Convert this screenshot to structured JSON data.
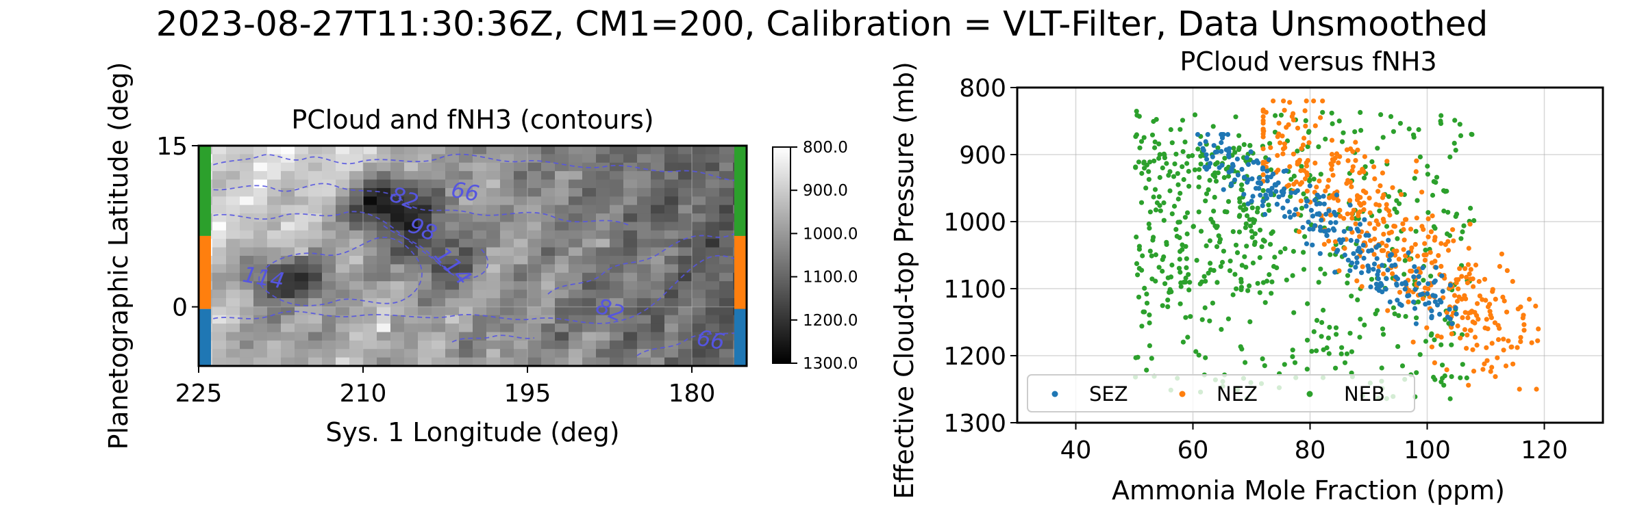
{
  "figure": {
    "suptitle": "2023-08-27T11:30:36Z, CM1=200, Calibration = VLT-Filter, Data Unsmoothed"
  },
  "chart_data": [
    {
      "type": "heatmap",
      "title": "PCloud and fNH3 (contours)",
      "xlabel": "Sys. 1 Longitude (deg)",
      "ylabel": "Planetographic Latitude (deg)",
      "xlim": [
        225,
        175
      ],
      "ylim": [
        -5.5,
        15
      ],
      "xticks": [
        225,
        210,
        195,
        180
      ],
      "yticks": [
        0,
        15
      ],
      "colormap": "gray_r",
      "colorbar": {
        "min": 800.0,
        "max": 1300.0,
        "ticks": [
          "800.0",
          "900.0",
          "1000.0",
          "1100.0",
          "1200.0",
          "1300.0"
        ]
      },
      "contour_color": "#5555e0",
      "contour_labels": [
        {
          "text": "82",
          "lon": 206.3,
          "lat": 10.0
        },
        {
          "text": "98",
          "lon": 204.6,
          "lat": 7.1
        },
        {
          "text": "66",
          "lon": 200.7,
          "lat": 10.6
        },
        {
          "text": "114",
          "lon": 219.1,
          "lat": 2.6
        },
        {
          "text": "114",
          "lon": 201.9,
          "lat": 3.7
        },
        {
          "text": "82",
          "lon": 187.5,
          "lat": -0.4
        },
        {
          "text": "66",
          "lon": 178.3,
          "lat": -3.2
        }
      ],
      "band_markers": [
        {
          "zone": "NEB",
          "lat_min": 6.6,
          "lat_max": 15,
          "color": "#2ca02c"
        },
        {
          "zone": "NEZ",
          "lat_min": -0.2,
          "lat_max": 6.6,
          "color": "#ff7f0e"
        },
        {
          "zone": "SEZ",
          "lat_min": -5.5,
          "lat_max": -0.2,
          "color": "#1f77b4"
        }
      ]
    },
    {
      "type": "scatter",
      "title": "PCloud versus fNH3",
      "xlabel": "Ammonia Mole Fraction (ppm)",
      "ylabel": "Effective Cloud-top Pressure (mb)",
      "xlim": [
        30,
        130
      ],
      "ylim": [
        1300,
        800
      ],
      "xticks": [
        40,
        60,
        80,
        100,
        120
      ],
      "yticks": [
        800,
        900,
        1000,
        1100,
        1200,
        1300
      ],
      "grid": true,
      "legend": {
        "placement": "lower-left",
        "ncol": 3
      },
      "series": [
        {
          "name": "SEZ",
          "color": "#1f77b4",
          "count": 260,
          "x_range": [
            60,
            107
          ],
          "y_range": [
            870,
            1180
          ]
        },
        {
          "name": "NEZ",
          "color": "#ff7f0e",
          "count": 420,
          "x_range": [
            72,
            121
          ],
          "y_range": [
            820,
            1250
          ]
        },
        {
          "name": "NEB",
          "color": "#2ca02c",
          "count": 620,
          "x_range": [
            44,
            110
          ],
          "y_range": [
            830,
            1275
          ]
        }
      ]
    }
  ]
}
